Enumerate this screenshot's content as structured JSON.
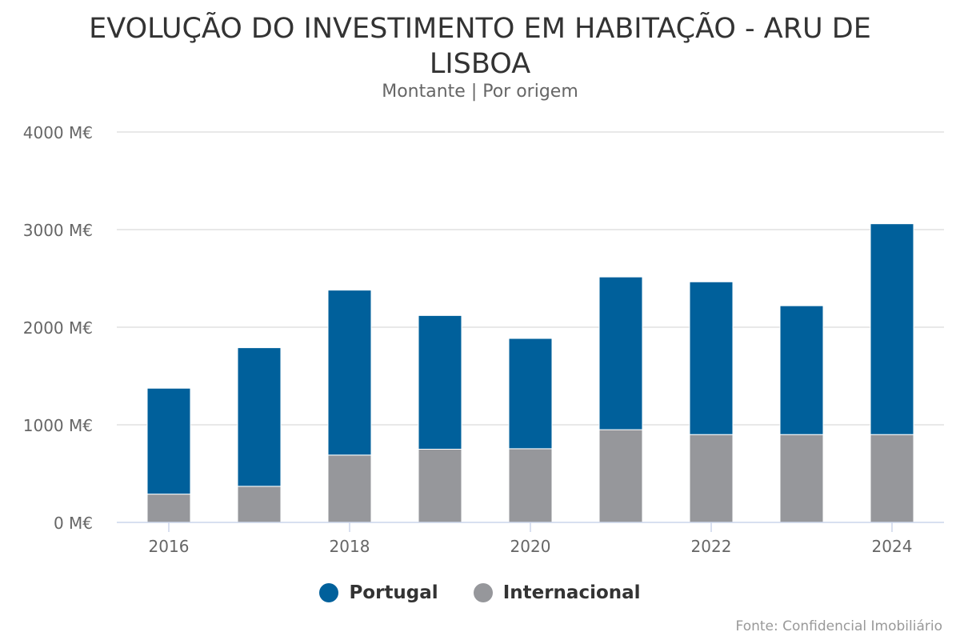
{
  "chart_data": {
    "type": "bar",
    "stacked": true,
    "title": "EVOLUÇÃO DO INVESTIMENTO EM HABITAÇÃO - ARU DE LISBOA",
    "subtitle": "Montante | Por origem",
    "x": [
      2016,
      2017,
      2018,
      2019,
      2020,
      2021,
      2022,
      2023,
      2024
    ],
    "x_ticks": [
      "2016",
      "2018",
      "2020",
      "2022",
      "2024"
    ],
    "ylim": [
      0,
      4000
    ],
    "y_ticks": [
      0,
      1000,
      2000,
      3000,
      4000
    ],
    "y_tick_labels": [
      "0 M€",
      "1000 M€",
      "2000 M€",
      "3000 M€",
      "4000 M€"
    ],
    "grid": true,
    "legend_position": "bottom",
    "series": [
      {
        "name": "Internacional",
        "color": "#96979b",
        "values": [
          290,
          370,
          690,
          750,
          755,
          950,
          900,
          900,
          900
        ]
      },
      {
        "name": "Portugal",
        "color": "#00609b",
        "values": [
          1085,
          1420,
          1690,
          1370,
          1130,
          1565,
          1565,
          1320,
          2160
        ]
      }
    ],
    "legend_order": [
      "Portugal",
      "Internacional"
    ]
  },
  "credits": "Fonte: Confidencial Imobiliário"
}
